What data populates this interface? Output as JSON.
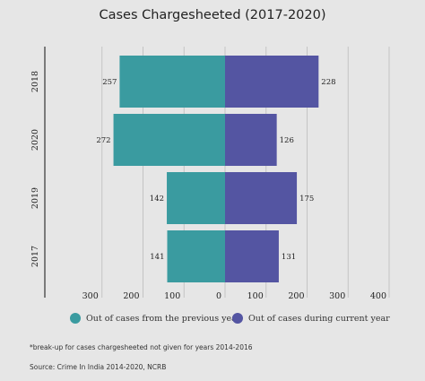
{
  "chart_data": {
    "type": "bar",
    "orientation": "horizontal-diverging",
    "title": "Cases Chargesheeted (2017-2020)",
    "categories": [
      "2018",
      "2020",
      "2019",
      "2017"
    ],
    "series": [
      {
        "name": "Out of cases from the previous year",
        "values": [
          257,
          272,
          142,
          141
        ],
        "color": "#3a9ba0",
        "side": "left"
      },
      {
        "name": "Out of cases during current year",
        "values": [
          228,
          126,
          175,
          131
        ],
        "color": "#5455a2",
        "side": "right"
      }
    ],
    "x_ticks_left": [
      "300",
      "200",
      "100",
      "0"
    ],
    "x_ticks_right": [
      "100",
      "200",
      "300",
      "400"
    ],
    "xlim": [
      -400,
      400
    ],
    "grid": true,
    "legend_position": "bottom"
  },
  "footnote": "*break-up for cases chargesheeted not given for years 2014-2016",
  "source": "Source: Crime In India 2014-2020, NCRB"
}
